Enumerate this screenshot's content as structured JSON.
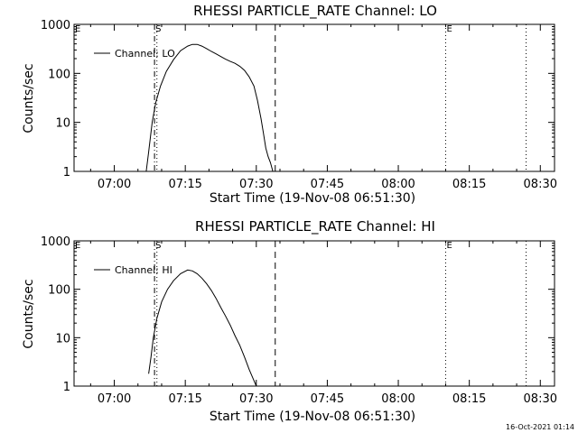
{
  "footer": {
    "timestamp": "16-Oct-2021 01:14"
  },
  "chart_data": [
    {
      "type": "line",
      "title": "RHESSI PARTICLE_RATE Channel: LO",
      "xlabel": "Start Time (19-Nov-08 06:51:30)",
      "ylabel": "Counts/sec",
      "y_scale": "log",
      "ylim": [
        1,
        1000
      ],
      "xlim": [
        "06:51:30",
        "08:33:00"
      ],
      "x_ticks": [
        "07:00",
        "07:15",
        "07:30",
        "07:45",
        "08:00",
        "08:15",
        "08:30"
      ],
      "y_ticks": [
        "1",
        "10",
        "100",
        "1000"
      ],
      "legend": "top-left",
      "markers": {
        "start": "S",
        "end": "E"
      },
      "vlines": [
        {
          "time": "07:08:30",
          "style": "dashdot"
        },
        {
          "time": "07:09:00",
          "style": "dotted"
        },
        {
          "time": "07:34:00",
          "style": "dashed"
        },
        {
          "time": "08:10:00",
          "style": "dotted"
        },
        {
          "time": "08:27:00",
          "style": "dotted"
        }
      ],
      "series": [
        {
          "name": "Channel: LO",
          "points": [
            [
              "07:06:45",
              1
            ],
            [
              "07:07:15",
              2.5
            ],
            [
              "07:08:00",
              10
            ],
            [
              "07:08:45",
              25
            ],
            [
              "07:09:45",
              55
            ],
            [
              "07:11:00",
              110
            ],
            [
              "07:12:30",
              190
            ],
            [
              "07:14:00",
              290
            ],
            [
              "07:15:30",
              360
            ],
            [
              "07:16:30",
              390
            ],
            [
              "07:17:30",
              390
            ],
            [
              "07:18:30",
              360
            ],
            [
              "07:19:30",
              320
            ],
            [
              "07:20:30",
              280
            ],
            [
              "07:21:30",
              250
            ],
            [
              "07:22:30",
              220
            ],
            [
              "07:23:30",
              195
            ],
            [
              "07:24:30",
              175
            ],
            [
              "07:25:30",
              160
            ],
            [
              "07:26:30",
              140
            ],
            [
              "07:27:30",
              115
            ],
            [
              "07:28:30",
              85
            ],
            [
              "07:29:30",
              55
            ],
            [
              "07:30:15",
              28
            ],
            [
              "07:31:00",
              12
            ],
            [
              "07:31:30",
              6
            ],
            [
              "07:32:00",
              3
            ],
            [
              "07:32:30",
              2
            ],
            [
              "07:33:00",
              1.5
            ],
            [
              "07:33:30",
              1
            ]
          ]
        }
      ]
    },
    {
      "type": "line",
      "title": "RHESSI PARTICLE_RATE Channel: HI",
      "xlabel": "Start Time (19-Nov-08 06:51:30)",
      "ylabel": "Counts/sec",
      "y_scale": "log",
      "ylim": [
        1,
        1000
      ],
      "xlim": [
        "06:51:30",
        "08:33:00"
      ],
      "x_ticks": [
        "07:00",
        "07:15",
        "07:30",
        "07:45",
        "08:00",
        "08:15",
        "08:30"
      ],
      "y_ticks": [
        "1",
        "10",
        "100",
        "1000"
      ],
      "legend": "top-left",
      "markers": {
        "start": "S",
        "end": "E"
      },
      "vlines": [
        {
          "time": "07:08:30",
          "style": "dashdot"
        },
        {
          "time": "07:09:00",
          "style": "dotted"
        },
        {
          "time": "07:34:00",
          "style": "dashed"
        },
        {
          "time": "08:10:00",
          "style": "dotted"
        },
        {
          "time": "08:27:00",
          "style": "dotted"
        }
      ],
      "series": [
        {
          "name": "Channel: HI",
          "points": [
            [
              "07:07:15",
              1.8
            ],
            [
              "07:07:45",
              4
            ],
            [
              "07:08:15",
              10
            ],
            [
              "07:09:00",
              25
            ],
            [
              "07:10:00",
              55
            ],
            [
              "07:11:15",
              100
            ],
            [
              "07:12:30",
              150
            ],
            [
              "07:14:00",
              210
            ],
            [
              "07:15:30",
              250
            ],
            [
              "07:16:30",
              240
            ],
            [
              "07:17:30",
              210
            ],
            [
              "07:18:30",
              170
            ],
            [
              "07:19:30",
              130
            ],
            [
              "07:20:30",
              95
            ],
            [
              "07:21:30",
              65
            ],
            [
              "07:22:30",
              42
            ],
            [
              "07:23:30",
              28
            ],
            [
              "07:24:30",
              18
            ],
            [
              "07:25:30",
              11
            ],
            [
              "07:26:30",
              7
            ],
            [
              "07:27:30",
              4
            ],
            [
              "07:28:30",
              2.2
            ],
            [
              "07:29:30",
              1.3
            ],
            [
              "07:30:00",
              1
            ]
          ]
        }
      ]
    }
  ]
}
